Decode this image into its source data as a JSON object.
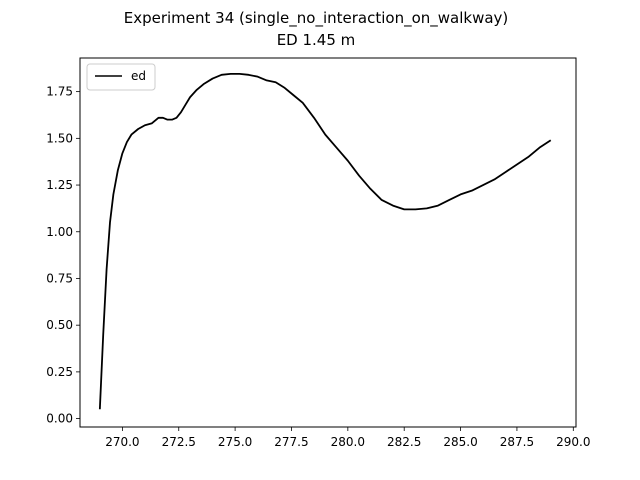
{
  "chart_data": {
    "type": "line",
    "title": "Experiment 34 (single_no_interaction_on_walkway)",
    "subtitle": "ED 1.45 m",
    "xlabel": "",
    "ylabel": "",
    "xlim": [
      268.12,
      290.12
    ],
    "ylim": [
      -0.045,
      1.93
    ],
    "xticks": [
      270.0,
      272.5,
      275.0,
      277.5,
      280.0,
      282.5,
      285.0,
      287.5,
      290.0
    ],
    "xtick_labels": [
      "270.0",
      "272.5",
      "275.0",
      "277.5",
      "280.0",
      "282.5",
      "285.0",
      "287.5",
      "290.0"
    ],
    "yticks": [
      0.0,
      0.25,
      0.5,
      0.75,
      1.0,
      1.25,
      1.5,
      1.75
    ],
    "ytick_labels": [
      "0.00",
      "0.25",
      "0.50",
      "0.75",
      "1.00",
      "1.25",
      "1.50",
      "1.75"
    ],
    "grid": false,
    "legend_position": "top-left",
    "series": [
      {
        "name": "ed",
        "color": "#000000",
        "x": [
          269.0,
          269.15,
          269.3,
          269.45,
          269.6,
          269.8,
          270.0,
          270.2,
          270.4,
          270.7,
          271.0,
          271.3,
          271.5,
          271.6,
          271.8,
          272.0,
          272.2,
          272.4,
          272.6,
          272.8,
          273.0,
          273.3,
          273.6,
          274.0,
          274.4,
          274.8,
          275.2,
          275.6,
          276.0,
          276.4,
          276.8,
          277.2,
          277.6,
          278.0,
          278.5,
          279.0,
          279.5,
          280.0,
          280.5,
          281.0,
          281.5,
          282.0,
          282.5,
          283.0,
          283.5,
          284.0,
          284.5,
          285.0,
          285.5,
          286.0,
          286.5,
          287.0,
          287.5,
          288.0,
          288.5,
          289.0
        ],
        "y": [
          0.05,
          0.45,
          0.8,
          1.05,
          1.2,
          1.33,
          1.42,
          1.48,
          1.52,
          1.55,
          1.57,
          1.58,
          1.6,
          1.61,
          1.61,
          1.6,
          1.6,
          1.61,
          1.64,
          1.68,
          1.72,
          1.76,
          1.79,
          1.82,
          1.84,
          1.845,
          1.845,
          1.84,
          1.83,
          1.81,
          1.8,
          1.77,
          1.73,
          1.69,
          1.61,
          1.52,
          1.45,
          1.38,
          1.3,
          1.23,
          1.17,
          1.14,
          1.12,
          1.12,
          1.125,
          1.14,
          1.17,
          1.2,
          1.22,
          1.25,
          1.28,
          1.32,
          1.36,
          1.4,
          1.45,
          1.49
        ]
      }
    ]
  }
}
